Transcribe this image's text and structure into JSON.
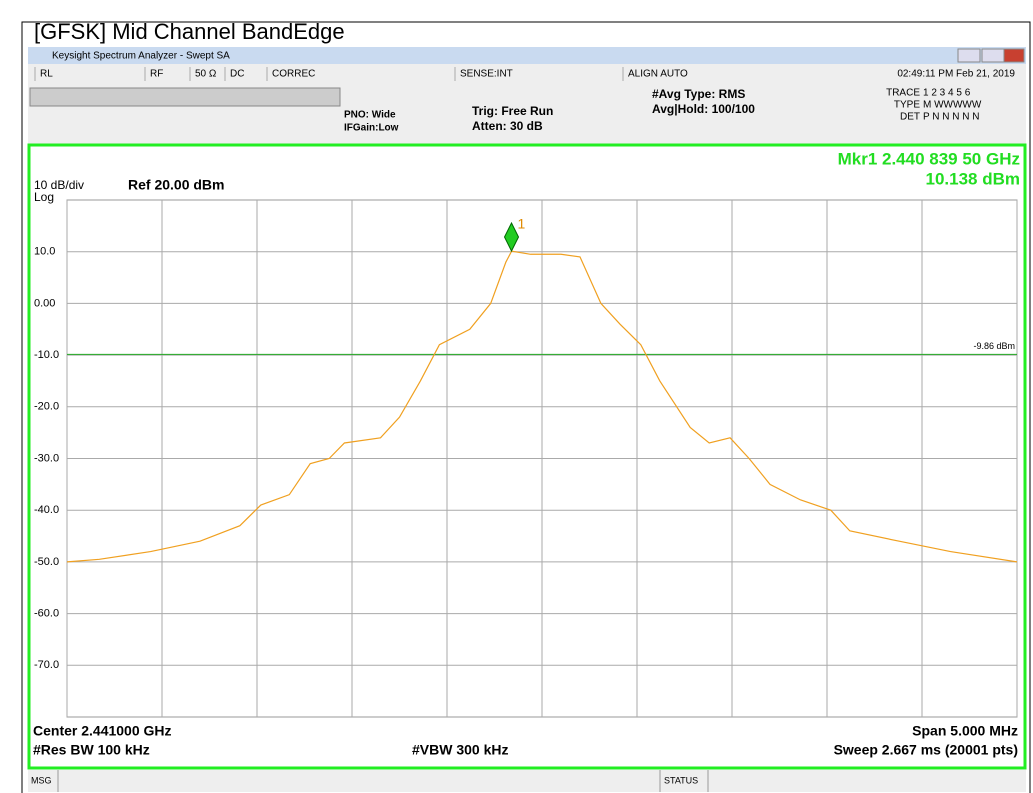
{
  "header": {
    "title": "[GFSK] Mid Channel BandEdge"
  },
  "window": {
    "title": "Keysight Spectrum Analyzer - Swept SA"
  },
  "status_bar": {
    "items": [
      "RL",
      "RF",
      "50 Ω",
      "DC",
      "CORREC",
      "SENSE:INT",
      "ALIGN AUTO"
    ],
    "datetime": "02:49:11 PM Feb 21, 2019"
  },
  "settings": {
    "pno": "PNO: Wide",
    "ifgain": "IFGain:Low",
    "trig": "Trig: Free Run",
    "atten": "Atten: 30 dB",
    "avg_type": "#Avg Type: RMS",
    "avg_hold": "Avg|Hold: 100/100",
    "trace_label": "TRACE",
    "trace_values": "1 2 3 4 5 6",
    "type_label": "TYPE",
    "type_values": "M WWWWW",
    "det_label": "DET",
    "det_values": "P N N N N N"
  },
  "display": {
    "scale": "10 dB/div",
    "scale_type": "Log",
    "ref": "Ref 20.00 dBm",
    "marker_freq": "Mkr1 2.440 839 50 GHz",
    "marker_level": "10.138 dBm",
    "center": "Center 2.441000 GHz",
    "span": "Span 5.000 MHz",
    "rbw": "#Res BW 100 kHz",
    "vbw": "#VBW 300 kHz",
    "sweep": "Sweep  2.667 ms (20001 pts)"
  },
  "footer": {
    "msg": "MSG",
    "status": "STATUS"
  },
  "chart_data": {
    "type": "line",
    "xlim": [
      2.4385,
      2.4435
    ],
    "xticks": [
      2.4385,
      2.439,
      2.4395,
      2.44,
      2.4405,
      2.441,
      2.4415,
      2.442,
      2.4425,
      2.443,
      2.4435
    ],
    "ylim": [
      -80,
      20
    ],
    "yticks": [
      {
        "value": 10,
        "label": "10.0"
      },
      {
        "value": 0,
        "label": "0.00"
      },
      {
        "value": -10,
        "label": "-10.0"
      },
      {
        "value": -20,
        "label": "-20.0"
      },
      {
        "value": -30,
        "label": "-30.0"
      },
      {
        "value": -40,
        "label": "-40.0"
      },
      {
        "value": -50,
        "label": "-50.0"
      },
      {
        "value": -60,
        "label": "-60.0"
      },
      {
        "value": -70,
        "label": "-70.0"
      }
    ],
    "grid": true,
    "x": [
      2.4385,
      2.43867,
      2.43894,
      2.4392,
      2.43941,
      2.43952,
      2.43967,
      2.43978,
      2.43988,
      2.43996,
      2.44015,
      2.44025,
      2.44036,
      2.44046,
      2.44062,
      2.44073,
      2.44081,
      2.44084,
      2.44094,
      2.4411,
      2.4412,
      2.44131,
      2.44141,
      2.44152,
      2.44162,
      2.44178,
      2.44188,
      2.44199,
      2.44209,
      2.4422,
      2.44236,
      2.44252,
      2.44262,
      2.44288,
      2.44315,
      2.4435
    ],
    "series": [
      {
        "color": "#f0a020",
        "values": [
          -50,
          -49.5,
          -48,
          -46,
          -43,
          -39,
          -37,
          -31,
          -30,
          -27,
          -26,
          -22,
          -15,
          -8,
          -5,
          0,
          8,
          10.1,
          9.5,
          9.5,
          9,
          0,
          -4,
          -8,
          -15,
          -24,
          -27,
          -26,
          -30,
          -35,
          -38,
          -40,
          -44,
          -46,
          -48,
          -50
        ]
      }
    ],
    "marker": {
      "label": "1",
      "x": 2.4408395,
      "value": 10.138,
      "color": "#22cc22"
    },
    "display_line": {
      "value": -9.86,
      "label": "-9.86 dBm",
      "color": "#22aa22"
    }
  }
}
